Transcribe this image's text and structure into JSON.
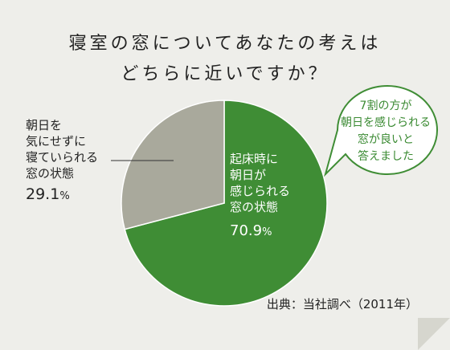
{
  "title": {
    "line1": "寝室の窓についてあなたの考えは",
    "line2": "どちらに近いですか？"
  },
  "chart_data": {
    "type": "pie",
    "slices": [
      {
        "label": "起床時に朝日が感じられる窓の状態",
        "label_lines": [
          "起床時に",
          "朝日が",
          "感じられる",
          "窓の状態"
        ],
        "value": 70.9,
        "value_text": "70.9",
        "unit": "%",
        "color": "#3f8d35"
      },
      {
        "label": "朝日を気にせずに寝ていられる窓の状態",
        "label_lines": [
          "朝日を",
          "気にせずに",
          "寝ていられる",
          "窓の状態"
        ],
        "value": 29.1,
        "value_text": "29.1",
        "unit": "%",
        "color": "#a9a99c"
      }
    ]
  },
  "callout": {
    "lines": [
      "7割の方が",
      "朝日を感じられる",
      "窓が良いと",
      "答えました"
    ],
    "border_color": "#3f8d35"
  },
  "source": "出典：当社調べ（2011年）",
  "colors": {
    "background": "#eeeeea",
    "accent": "#3f8d35",
    "fold": "#d6d6ce"
  }
}
